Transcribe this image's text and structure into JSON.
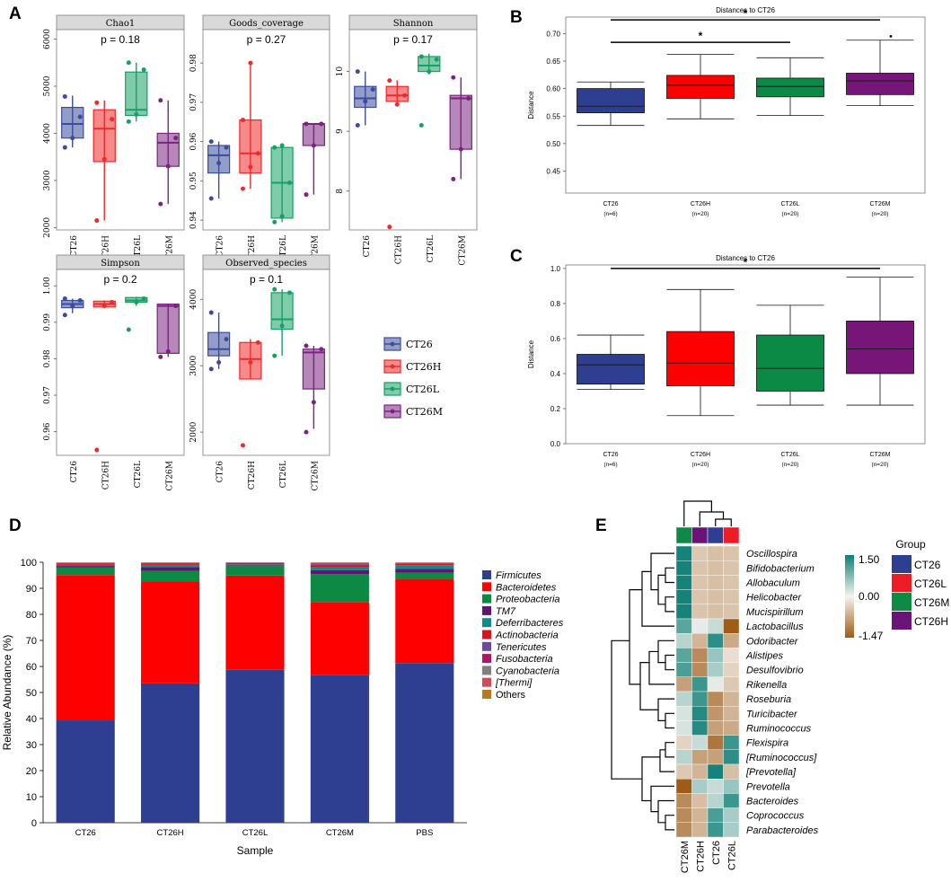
{
  "panels": {
    "A": "A",
    "B": "B",
    "C": "C",
    "D": "D",
    "E": "E"
  },
  "chart_data": [
    {
      "id": "A-chao1",
      "type": "box",
      "title": "Chao1",
      "pvalue": "p = 0.18",
      "ylim": [
        1950,
        6200
      ],
      "yticks": [
        2000,
        3000,
        4000,
        5000,
        6000
      ],
      "categories": [
        "CT26",
        "CT26H",
        "CT26L",
        "CT26M"
      ],
      "boxes": [
        {
          "min": 3700,
          "q1": 3900,
          "median": 4200,
          "q3": 4550,
          "max": 4800,
          "points": [
            3700,
            3900,
            4350,
            4780
          ]
        },
        {
          "min": 2150,
          "q1": 3400,
          "median": 4100,
          "q3": 4500,
          "max": 4700,
          "points": [
            2150,
            3450,
            4300,
            4650
          ]
        },
        {
          "min": 4250,
          "q1": 4380,
          "median": 4500,
          "q3": 5300,
          "max": 5500,
          "points": [
            4250,
            4400,
            5350,
            5500
          ]
        },
        {
          "min": 2500,
          "q1": 3300,
          "median": 3800,
          "q3": 4000,
          "max": 4700,
          "points": [
            2500,
            3300,
            3900,
            4700
          ]
        }
      ]
    },
    {
      "id": "A-goods",
      "type": "box",
      "title": "Goods_coverage",
      "pvalue": "p = 0.27",
      "ylim": [
        0.9375,
        0.9885
      ],
      "yticks": [
        0.94,
        0.95,
        0.96,
        0.97,
        0.98
      ],
      "categories": [
        "CT26",
        "CT26H",
        "CT26L",
        "CT26M"
      ],
      "boxes": [
        {
          "min": 0.9455,
          "q1": 0.952,
          "median": 0.9565,
          "q3": 0.959,
          "max": 0.96,
          "points": [
            0.9455,
            0.9545,
            0.9585,
            0.96
          ]
        },
        {
          "min": 0.948,
          "q1": 0.952,
          "median": 0.957,
          "q3": 0.9655,
          "max": 0.98,
          "points": [
            0.948,
            0.9535,
            0.957,
            0.9655,
            0.98
          ]
        },
        {
          "min": 0.9395,
          "q1": 0.9405,
          "median": 0.9495,
          "q3": 0.9585,
          "max": 0.959,
          "points": [
            0.9395,
            0.941,
            0.9495,
            0.9585,
            0.959
          ]
        },
        {
          "min": 0.9465,
          "q1": 0.959,
          "median": 0.9645,
          "q3": 0.9645,
          "max": 0.9645,
          "points": [
            0.9465,
            0.959,
            0.9645,
            0.9645
          ]
        }
      ]
    },
    {
      "id": "A-shannon",
      "type": "box",
      "title": "Shannon",
      "pvalue": "p = 0.17",
      "ylim": [
        7.35,
        10.7
      ],
      "yticks": [
        8,
        9,
        10
      ],
      "categories": [
        "CT26",
        "CT26H",
        "CT26L",
        "CT26M"
      ],
      "boxes": [
        {
          "min": 9.1,
          "q1": 9.4,
          "median": 9.55,
          "q3": 9.75,
          "max": 10.0,
          "points": [
            9.1,
            9.5,
            9.7,
            10.0
          ]
        },
        {
          "min": 9.45,
          "q1": 9.5,
          "median": 9.6,
          "q3": 9.75,
          "max": 9.85,
          "points": [
            7.4,
            9.45,
            9.6,
            9.85
          ]
        },
        {
          "min": 9.95,
          "q1": 10.0,
          "median": 10.1,
          "q3": 10.25,
          "max": 10.3,
          "points": [
            9.1,
            10.0,
            10.2,
            10.25
          ]
        },
        {
          "min": 8.2,
          "q1": 8.7,
          "median": 9.55,
          "q3": 9.6,
          "max": 9.9,
          "points": [
            8.2,
            8.7,
            9.55,
            9.9
          ]
        }
      ]
    },
    {
      "id": "A-simpson",
      "type": "box",
      "title": "Simpson",
      "pvalue": "p = 0.2",
      "ylim": [
        0.9535,
        1.0045
      ],
      "yticks": [
        0.96,
        0.97,
        0.98,
        0.99,
        1.0
      ],
      "categories": [
        "CT26",
        "CT26H",
        "CT26L",
        "CT26M"
      ],
      "boxes": [
        {
          "min": 0.9925,
          "q1": 0.994,
          "median": 0.995,
          "q3": 0.996,
          "max": 0.9965,
          "points": [
            0.992,
            0.9945,
            0.996,
            0.9965
          ]
        },
        {
          "min": 0.994,
          "q1": 0.9942,
          "median": 0.995,
          "q3": 0.9958,
          "max": 0.996,
          "points": [
            0.955,
            0.9945,
            0.9955
          ]
        },
        {
          "min": 0.9945,
          "q1": 0.9955,
          "median": 0.996,
          "q3": 0.9968,
          "max": 0.997,
          "points": [
            0.988,
            0.9955,
            0.9965
          ]
        },
        {
          "min": 0.9805,
          "q1": 0.9815,
          "median": 0.9945,
          "q3": 0.995,
          "max": 0.995,
          "points": [
            0.9805,
            0.982,
            0.9945
          ]
        }
      ]
    },
    {
      "id": "A-observed",
      "type": "box",
      "title": "Observed_species",
      "pvalue": "p = 0.1",
      "ylim": [
        1650,
        4450
      ],
      "yticks": [
        2000,
        3000,
        4000
      ],
      "categories": [
        "CT26",
        "CT26H",
        "CT26L",
        "CT26M"
      ],
      "boxes": [
        {
          "min": 2950,
          "q1": 3150,
          "median": 3250,
          "q3": 3500,
          "max": 3800,
          "points": [
            2950,
            3050,
            3400,
            3800
          ]
        },
        {
          "min": 2800,
          "q1": 2800,
          "median": 3100,
          "q3": 3350,
          "max": 3400,
          "points": [
            1800,
            3050,
            3350
          ]
        },
        {
          "min": 3150,
          "q1": 3550,
          "median": 3700,
          "q3": 4100,
          "max": 4150,
          "points": [
            3150,
            3600,
            4100,
            4150
          ]
        },
        {
          "min": 2050,
          "q1": 2650,
          "median": 3200,
          "q3": 3250,
          "max": 3300,
          "points": [
            2000,
            2450,
            3250,
            3300
          ]
        }
      ]
    },
    {
      "id": "B",
      "type": "box",
      "title": "Distances to CT26",
      "ylabel": "Distance",
      "ylim": [
        0.41,
        0.73
      ],
      "yticks": [
        0.45,
        0.5,
        0.55,
        0.6,
        0.65,
        0.7
      ],
      "ytick_labels": [
        "0.45",
        "0.50",
        "0.55",
        "0.60",
        "0.65",
        "0.70"
      ],
      "categories": [
        "CT26",
        "CT26H",
        "CT26L",
        "CT26M"
      ],
      "category_n": [
        "(n=6)",
        "(n=20)",
        "(n=20)",
        "(n=20)"
      ],
      "boxes": [
        {
          "min": 0.533,
          "q1": 0.556,
          "median": 0.568,
          "q3": 0.6,
          "max": 0.612
        },
        {
          "min": 0.545,
          "q1": 0.582,
          "median": 0.606,
          "q3": 0.624,
          "max": 0.662
        },
        {
          "min": 0.551,
          "q1": 0.585,
          "median": 0.604,
          "q3": 0.619,
          "max": 0.656
        },
        {
          "min": 0.569,
          "q1": 0.589,
          "median": 0.614,
          "q3": 0.628,
          "max": 0.688,
          "outliers": [
            0.695
          ]
        }
      ],
      "significance": [
        {
          "from": "CT26",
          "to": "CT26M",
          "label": "*",
          "y": 0.725
        },
        {
          "from": "CT26",
          "to": "CT26L",
          "label": "*",
          "y": 0.684
        }
      ]
    },
    {
      "id": "C",
      "type": "box",
      "title": "Distances to CT26",
      "ylabel": "Distance",
      "ylim": [
        0.0,
        1.02
      ],
      "yticks": [
        0.0,
        0.2,
        0.4,
        0.6,
        0.8,
        1.0
      ],
      "ytick_labels": [
        "0.0",
        "0.2",
        "0.4",
        "0.6",
        "0.8",
        "1.0"
      ],
      "categories": [
        "CT26",
        "CT26H",
        "CT26L",
        "CT26M"
      ],
      "category_n": [
        "(n=6)",
        "(n=20)",
        "(n=20)",
        "(n=20)"
      ],
      "boxes": [
        {
          "min": 0.31,
          "q1": 0.34,
          "median": 0.45,
          "q3": 0.51,
          "max": 0.62
        },
        {
          "min": 0.16,
          "q1": 0.33,
          "median": 0.46,
          "q3": 0.64,
          "max": 0.88
        },
        {
          "min": 0.22,
          "q1": 0.3,
          "median": 0.43,
          "q3": 0.62,
          "max": 0.79
        },
        {
          "min": 0.22,
          "q1": 0.4,
          "median": 0.54,
          "q3": 0.7,
          "max": 0.95
        }
      ],
      "significance": [
        {
          "from": "CT26",
          "to": "CT26M",
          "label": "*",
          "y": 1.0
        }
      ]
    },
    {
      "id": "D",
      "type": "stacked-bar",
      "ylabel": "Relative Abundance (%)",
      "xlabel": "Sample",
      "ylim": [
        0,
        100
      ],
      "yticks": [
        0,
        10,
        20,
        30,
        40,
        50,
        60,
        70,
        80,
        90,
        100
      ],
      "categories": [
        "CT26",
        "CT26H",
        "CT26L",
        "CT26M",
        "PBS"
      ],
      "series": [
        {
          "name": "Firmicutes",
          "values": [
            39.3,
            53.5,
            58.7,
            56.6,
            61.3
          ]
        },
        {
          "name": "Bacteroidetes",
          "values": [
            55.8,
            39.1,
            36.2,
            28.1,
            32.3
          ]
        },
        {
          "name": "Proteobacteria",
          "values": [
            3.0,
            4.1,
            3.6,
            10.8,
            2.4
          ]
        },
        {
          "name": "TM7",
          "values": [
            0.5,
            1.5,
            0.4,
            1.5,
            1.4
          ]
        },
        {
          "name": "Deferribacteres",
          "values": [
            0.4,
            0.8,
            0.3,
            1.0,
            1.5
          ]
        },
        {
          "name": "Actinobacteria",
          "values": [
            0.6,
            0.5,
            0.5,
            0.8,
            0.5
          ]
        },
        {
          "name": "Tenericutes",
          "values": [
            0.1,
            0.2,
            0.1,
            0.4,
            0.3
          ]
        },
        {
          "name": "Fusobacteria",
          "values": [
            0.1,
            0.1,
            0.1,
            0.3,
            0.1
          ]
        },
        {
          "name": "Cyanobacteria",
          "values": [
            0.1,
            0.1,
            0.05,
            0.3,
            0.1
          ]
        },
        {
          "name": "[Thermi]",
          "values": [
            0.05,
            0.05,
            0.03,
            0.1,
            0.05
          ]
        },
        {
          "name": "Others",
          "values": [
            0.05,
            0.05,
            0.02,
            0.1,
            0.05
          ]
        }
      ],
      "legend_italic": [
        true,
        true,
        true,
        true,
        true,
        true,
        true,
        true,
        true,
        true,
        false
      ]
    },
    {
      "id": "E",
      "type": "heatmap",
      "legend_title": "Group",
      "scale": {
        "max": "1.50",
        "mid": "0.00",
        "min": "-1.47",
        "vmin": -1.47,
        "vmax": 1.5
      },
      "columns": [
        "CT26M",
        "CT26H",
        "CT26",
        "CT26L"
      ],
      "column_groups": [
        "CT26M",
        "CT26H",
        "CT26",
        "CT26L"
      ],
      "rows": [
        "Oscillospira",
        "Bifidobacterium",
        "Allobaculum",
        "Helicobacter",
        "Mucispirillum",
        "Lactobacillus",
        "Odoribacter",
        "Alistipes",
        "Desulfovibrio",
        "Rikenella",
        "Roseburia",
        "Turicibacter",
        "Ruminococcus",
        "Flexispira",
        "[Ruminococcus]",
        "[Prevotella]",
        "Prevotella",
        "Bacteroides",
        "Coprococcus",
        "Parabacteroides"
      ],
      "values": [
        [
          1.45,
          -0.4,
          -0.5,
          -0.45
        ],
        [
          1.45,
          -0.45,
          -0.5,
          -0.45
        ],
        [
          1.45,
          -0.45,
          -0.5,
          -0.45
        ],
        [
          1.45,
          -0.45,
          -0.5,
          -0.45
        ],
        [
          1.45,
          -0.45,
          -0.5,
          -0.45
        ],
        [
          1.0,
          0.1,
          0.3,
          -1.45
        ],
        [
          0.4,
          -0.6,
          1.3,
          -0.7
        ],
        [
          1.0,
          -1.0,
          0.6,
          -0.2
        ],
        [
          1.1,
          -1.0,
          0.5,
          -0.3
        ],
        [
          -0.8,
          1.2,
          0.1,
          -0.4
        ],
        [
          0.4,
          1.2,
          -1.0,
          -0.6
        ],
        [
          0.2,
          1.35,
          -0.9,
          -0.6
        ],
        [
          0.2,
          1.35,
          -0.8,
          -0.7
        ],
        [
          -0.3,
          0.3,
          -1.2,
          1.2
        ],
        [
          0.4,
          -0.8,
          -0.8,
          1.3
        ],
        [
          -0.4,
          -0.6,
          1.45,
          -0.5
        ],
        [
          -1.45,
          0.5,
          0.3,
          0.6
        ],
        [
          -1.0,
          -0.5,
          0.4,
          1.2
        ],
        [
          -1.0,
          -0.6,
          1.1,
          0.5
        ],
        [
          -1.0,
          -0.6,
          1.2,
          0.5
        ]
      ],
      "legend": [
        {
          "label": "CT26",
          "color": "#2e3f92"
        },
        {
          "label": "CT26L",
          "color": "#ee1c24"
        },
        {
          "label": "CT26M",
          "color": "#0d8a43"
        },
        {
          "label": "CT26H",
          "color": "#6b1478"
        }
      ]
    }
  ],
  "colors": {
    "groups_A": {
      "CT26": "#3b4c9c",
      "CT26H": "#ee2a2a",
      "CT26L": "#16a065",
      "CT26M": "#7b2282"
    },
    "groups_B": {
      "CT26": "#2e3f92",
      "CT26H": "#ff0000",
      "CT26L": "#0a8a45",
      "CT26M": "#761679"
    },
    "phyla": [
      "#2e3f92",
      "#ff0000",
      "#0c8a43",
      "#5e1670",
      "#138a8a",
      "#d6141e",
      "#6a4aa0",
      "#b01465",
      "#808080",
      "#d14a5a",
      "#b97a1e"
    ],
    "heat_hi": "#0d7f76",
    "heat_mid": "#f5f3ef",
    "heat_lo": "#9e5a14"
  },
  "legendA": [
    "CT26",
    "CT26H",
    "CT26L",
    "CT26M"
  ]
}
